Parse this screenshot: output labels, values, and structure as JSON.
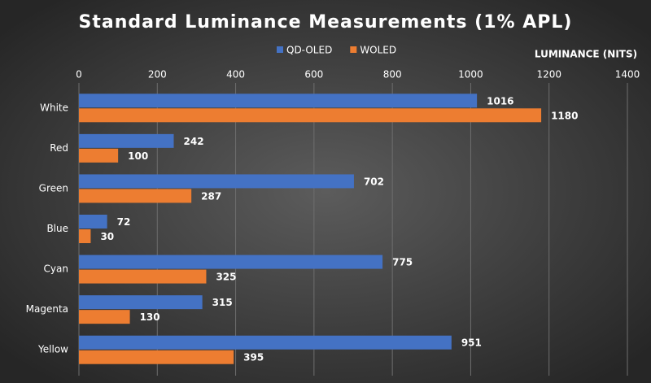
{
  "chart_data": {
    "type": "bar",
    "orientation": "horizontal",
    "title": "Standard Luminance Measurements (1% APL)",
    "x_label": "LUMINANCE (NITS)",
    "categories": [
      "White",
      "Red",
      "Green",
      "Blue",
      "Cyan",
      "Magenta",
      "Yellow"
    ],
    "series": [
      {
        "name": "QD-OLED",
        "color": "#4472c4",
        "values": [
          1016,
          242,
          702,
          72,
          775,
          315,
          951
        ]
      },
      {
        "name": "WOLED",
        "color": "#ed7d31",
        "values": [
          1180,
          100,
          287,
          30,
          325,
          130,
          395
        ]
      }
    ],
    "xlim": [
      0,
      1400
    ],
    "xticks": [
      0,
      200,
      400,
      600,
      800,
      1000,
      1200,
      1400
    ],
    "grid": true,
    "legend": "top"
  }
}
